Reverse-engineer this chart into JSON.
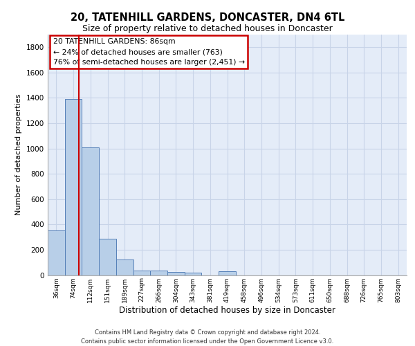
{
  "title_line1": "20, TATENHILL GARDENS, DONCASTER, DN4 6TL",
  "title_line2": "Size of property relative to detached houses in Doncaster",
  "xlabel": "Distribution of detached houses by size in Doncaster",
  "ylabel": "Number of detached properties",
  "footer_line1": "Contains HM Land Registry data © Crown copyright and database right 2024.",
  "footer_line2": "Contains public sector information licensed under the Open Government Licence v3.0.",
  "bin_labels": [
    "36sqm",
    "74sqm",
    "112sqm",
    "151sqm",
    "189sqm",
    "227sqm",
    "266sqm",
    "304sqm",
    "343sqm",
    "381sqm",
    "419sqm",
    "458sqm",
    "496sqm",
    "534sqm",
    "573sqm",
    "611sqm",
    "650sqm",
    "688sqm",
    "726sqm",
    "765sqm",
    "803sqm"
  ],
  "bar_values": [
    355,
    1390,
    1010,
    285,
    125,
    38,
    35,
    25,
    18,
    0,
    30,
    0,
    0,
    0,
    0,
    0,
    0,
    0,
    0,
    0,
    0
  ],
  "bar_color": "#b8cfe8",
  "bar_edge_color": "#5580b8",
  "grid_color": "#c8d4e8",
  "background_color": "#e4ecf8",
  "annotation_text": "20 TATENHILL GARDENS: 86sqm\n← 24% of detached houses are smaller (763)\n76% of semi-detached houses are larger (2,451) →",
  "annotation_box_facecolor": "#ffffff",
  "annotation_box_edgecolor": "#cc0000",
  "red_line_color": "#cc0000",
  "red_line_x": 1.33,
  "ylim": [
    0,
    1900
  ],
  "yticks": [
    0,
    200,
    400,
    600,
    800,
    1000,
    1200,
    1400,
    1600,
    1800
  ]
}
